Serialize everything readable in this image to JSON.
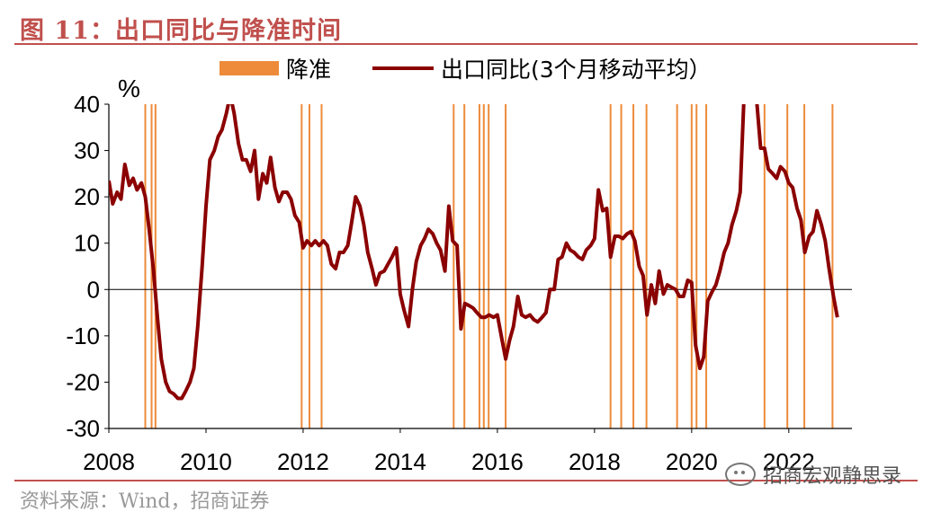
{
  "title": "图 11：出口同比与降准时间",
  "source": "资料来源：Wind，招商证券",
  "watermark": "招商宏观静思录",
  "colors": {
    "accent": "#c0504d",
    "line": "#8b0000",
    "rrr": "#ed8b3a"
  },
  "chart_data": {
    "type": "line",
    "ylabel": "%",
    "ylim": [
      -30,
      40
    ],
    "yticks": [
      40,
      30,
      20,
      10,
      0,
      -10,
      -20,
      -30
    ],
    "xlim": [
      2008,
      2023.3
    ],
    "xticks": [
      "2008",
      "2010",
      "2012",
      "2014",
      "2016",
      "2018",
      "2020",
      "2022"
    ],
    "legend": {
      "position": "top",
      "items": [
        {
          "label": "降准",
          "kind": "bar"
        },
        {
          "label": "出口同比(3个月移动平均）",
          "kind": "line"
        }
      ]
    },
    "rrr_cuts": [
      2008.75,
      2008.88,
      2008.96,
      2011.97,
      2012.13,
      2012.38,
      2015.1,
      2015.32,
      2015.63,
      2015.72,
      2015.82,
      2016.17,
      2018.33,
      2018.55,
      2018.8,
      2019.07,
      2019.7,
      2020.0,
      2020.1,
      2020.3,
      2021.5,
      2021.97,
      2022.32,
      2022.9
    ],
    "series": [
      {
        "name": "出口同比(3个月移动平均）",
        "points": [
          [
            2008.0,
            23.5
          ],
          [
            2008.08,
            18.5
          ],
          [
            2008.17,
            21
          ],
          [
            2008.25,
            19.5
          ],
          [
            2008.33,
            27
          ],
          [
            2008.42,
            22.5
          ],
          [
            2008.5,
            24
          ],
          [
            2008.58,
            21.5
          ],
          [
            2008.67,
            23
          ],
          [
            2008.75,
            20
          ],
          [
            2008.83,
            13
          ],
          [
            2008.92,
            4
          ],
          [
            2009.0,
            -6
          ],
          [
            2009.08,
            -15
          ],
          [
            2009.17,
            -20
          ],
          [
            2009.25,
            -22
          ],
          [
            2009.33,
            -22.5
          ],
          [
            2009.42,
            -23.5
          ],
          [
            2009.5,
            -23.5
          ],
          [
            2009.58,
            -22
          ],
          [
            2009.67,
            -20
          ],
          [
            2009.75,
            -17
          ],
          [
            2009.83,
            -8
          ],
          [
            2009.92,
            5
          ],
          [
            2010.0,
            18
          ],
          [
            2010.08,
            28
          ],
          [
            2010.17,
            30
          ],
          [
            2010.25,
            33
          ],
          [
            2010.33,
            34.5
          ],
          [
            2010.42,
            38
          ],
          [
            2010.5,
            42
          ],
          [
            2010.58,
            38
          ],
          [
            2010.67,
            31.5
          ],
          [
            2010.75,
            28
          ],
          [
            2010.83,
            28
          ],
          [
            2010.92,
            25.5
          ],
          [
            2011.0,
            30
          ],
          [
            2011.08,
            19.5
          ],
          [
            2011.17,
            25
          ],
          [
            2011.25,
            23
          ],
          [
            2011.33,
            28.5
          ],
          [
            2011.42,
            22
          ],
          [
            2011.5,
            19
          ],
          [
            2011.58,
            21
          ],
          [
            2011.67,
            21
          ],
          [
            2011.75,
            19.5
          ],
          [
            2011.83,
            16
          ],
          [
            2011.92,
            14.5
          ],
          [
            2012.0,
            9
          ],
          [
            2012.08,
            10.5
          ],
          [
            2012.17,
            9.5
          ],
          [
            2012.25,
            10.5
          ],
          [
            2012.33,
            9.5
          ],
          [
            2012.42,
            10.5
          ],
          [
            2012.5,
            9.5
          ],
          [
            2012.58,
            5.5
          ],
          [
            2012.67,
            4.5
          ],
          [
            2012.75,
            8
          ],
          [
            2012.83,
            8
          ],
          [
            2012.92,
            9.5
          ],
          [
            2013.0,
            14.5
          ],
          [
            2013.08,
            20
          ],
          [
            2013.17,
            18
          ],
          [
            2013.25,
            14
          ],
          [
            2013.33,
            8
          ],
          [
            2013.42,
            4.5
          ],
          [
            2013.5,
            1
          ],
          [
            2013.58,
            3.5
          ],
          [
            2013.67,
            4
          ],
          [
            2013.75,
            5.5
          ],
          [
            2013.83,
            7
          ],
          [
            2013.92,
            9
          ],
          [
            2014.0,
            -1
          ],
          [
            2014.08,
            -4.5
          ],
          [
            2014.17,
            -8
          ],
          [
            2014.25,
            0
          ],
          [
            2014.33,
            6
          ],
          [
            2014.42,
            9.5
          ],
          [
            2014.5,
            11
          ],
          [
            2014.58,
            13
          ],
          [
            2014.67,
            12
          ],
          [
            2014.75,
            10
          ],
          [
            2014.83,
            8.5
          ],
          [
            2014.92,
            4
          ],
          [
            2015.0,
            18
          ],
          [
            2015.08,
            10.5
          ],
          [
            2015.17,
            9.5
          ],
          [
            2015.25,
            -8.5
          ],
          [
            2015.33,
            -3
          ],
          [
            2015.42,
            -3.5
          ],
          [
            2015.5,
            -4
          ],
          [
            2015.58,
            -5
          ],
          [
            2015.67,
            -6
          ],
          [
            2015.75,
            -6
          ],
          [
            2015.83,
            -5.5
          ],
          [
            2015.92,
            -6
          ],
          [
            2016.0,
            -5.5
          ],
          [
            2016.08,
            -10
          ],
          [
            2016.17,
            -15
          ],
          [
            2016.25,
            -11
          ],
          [
            2016.33,
            -8
          ],
          [
            2016.42,
            -1.5
          ],
          [
            2016.5,
            -5.5
          ],
          [
            2016.58,
            -6
          ],
          [
            2016.67,
            -5.5
          ],
          [
            2016.75,
            -6.5
          ],
          [
            2016.83,
            -7
          ],
          [
            2016.92,
            -6
          ],
          [
            2017.0,
            -5
          ],
          [
            2017.08,
            0
          ],
          [
            2017.17,
            0
          ],
          [
            2017.25,
            6.5
          ],
          [
            2017.33,
            7
          ],
          [
            2017.42,
            10
          ],
          [
            2017.5,
            8.5
          ],
          [
            2017.58,
            8
          ],
          [
            2017.67,
            7
          ],
          [
            2017.75,
            6.5
          ],
          [
            2017.83,
            8.5
          ],
          [
            2017.92,
            9.5
          ],
          [
            2018.0,
            11
          ],
          [
            2018.08,
            21.5
          ],
          [
            2018.17,
            17
          ],
          [
            2018.25,
            17.5
          ],
          [
            2018.33,
            7
          ],
          [
            2018.42,
            11.5
          ],
          [
            2018.5,
            11.5
          ],
          [
            2018.58,
            11
          ],
          [
            2018.67,
            12
          ],
          [
            2018.75,
            12.5
          ],
          [
            2018.83,
            10.5
          ],
          [
            2018.92,
            5
          ],
          [
            2019.0,
            3
          ],
          [
            2019.08,
            -5.5
          ],
          [
            2019.17,
            1
          ],
          [
            2019.25,
            -3
          ],
          [
            2019.33,
            4
          ],
          [
            2019.42,
            -1
          ],
          [
            2019.5,
            1
          ],
          [
            2019.58,
            0.5
          ],
          [
            2019.67,
            0
          ],
          [
            2019.75,
            -1.5
          ],
          [
            2019.83,
            -1.5
          ],
          [
            2019.92,
            2
          ],
          [
            2020.0,
            1.5
          ],
          [
            2020.08,
            -12
          ],
          [
            2020.17,
            -17
          ],
          [
            2020.25,
            -14.5
          ],
          [
            2020.33,
            -2.5
          ],
          [
            2020.42,
            -0.5
          ],
          [
            2020.5,
            1
          ],
          [
            2020.58,
            4
          ],
          [
            2020.67,
            8
          ],
          [
            2020.75,
            10
          ],
          [
            2020.83,
            14
          ],
          [
            2020.92,
            17
          ],
          [
            2021.0,
            21
          ],
          [
            2021.08,
            42
          ],
          [
            2021.17,
            42
          ],
          [
            2021.25,
            42
          ],
          [
            2021.33,
            42
          ],
          [
            2021.42,
            30.5
          ],
          [
            2021.5,
            30.5
          ],
          [
            2021.58,
            26
          ],
          [
            2021.67,
            25
          ],
          [
            2021.75,
            24
          ],
          [
            2021.83,
            26.5
          ],
          [
            2021.92,
            25.5
          ],
          [
            2022.0,
            23
          ],
          [
            2022.08,
            22
          ],
          [
            2022.17,
            17.5
          ],
          [
            2022.25,
            15
          ],
          [
            2022.33,
            8
          ],
          [
            2022.42,
            11.5
          ],
          [
            2022.5,
            12.5
          ],
          [
            2022.58,
            17
          ],
          [
            2022.67,
            14
          ],
          [
            2022.75,
            10.5
          ],
          [
            2022.83,
            4.5
          ],
          [
            2022.92,
            -1.5
          ],
          [
            2023.0,
            -6
          ]
        ]
      }
    ]
  }
}
